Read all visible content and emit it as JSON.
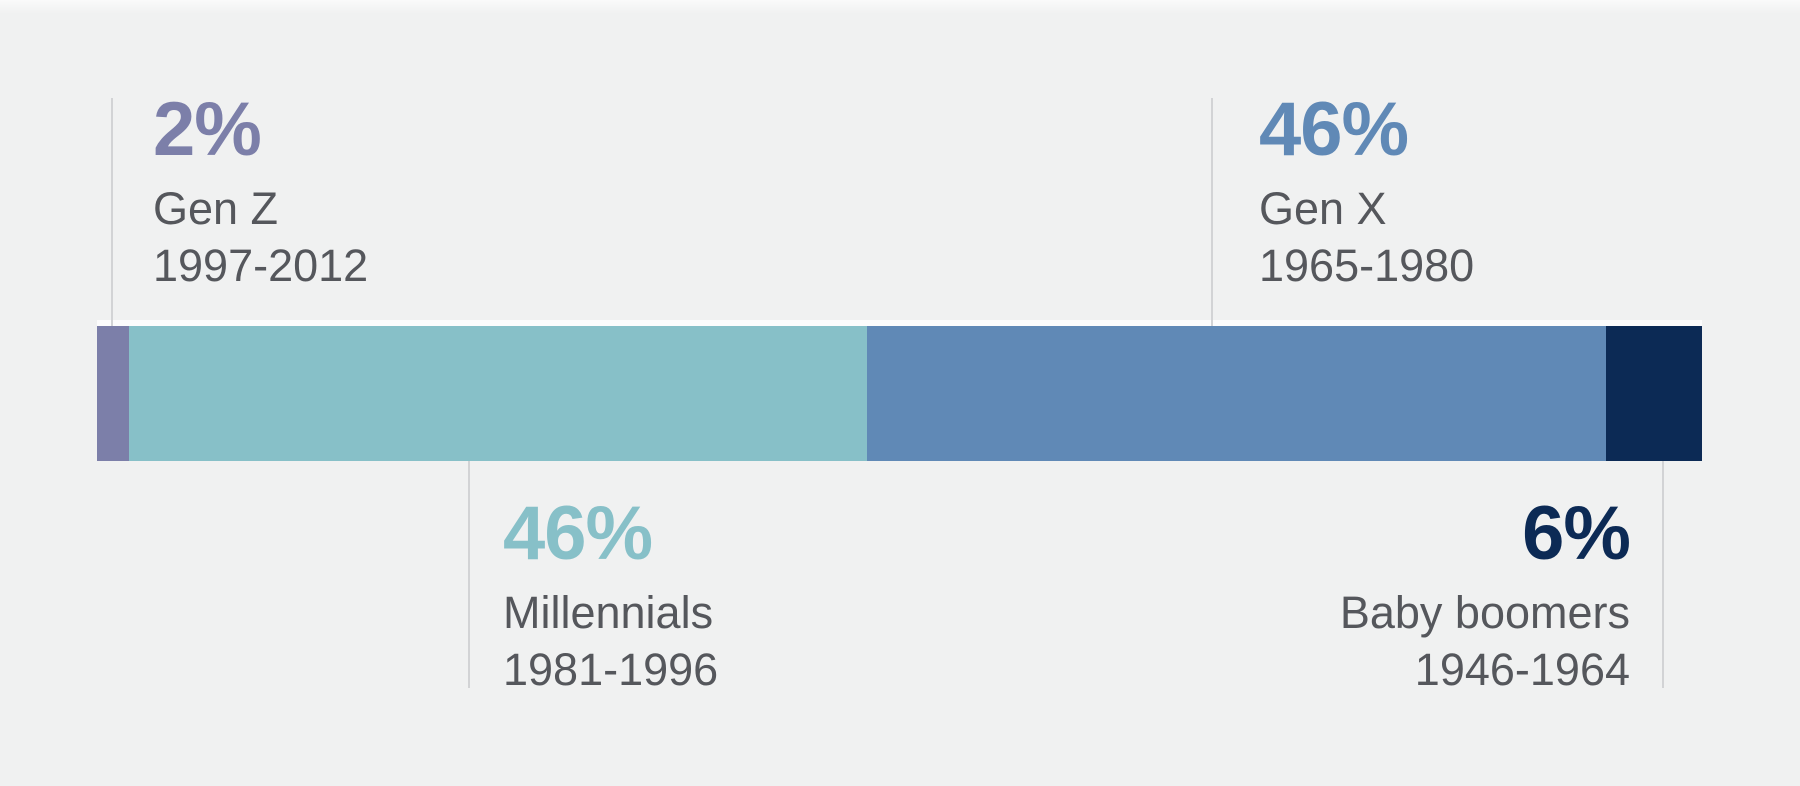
{
  "background_color": "#f0f1f1",
  "text_color": "#55575c",
  "leader_line_color": "#d2d3d5",
  "chart_data": {
    "type": "bar",
    "variant": "horizontal-stacked-single-bar",
    "title": "",
    "unit": "%",
    "total": 100,
    "categories": [
      "Gen Z",
      "Millennials",
      "Gen X",
      "Baby boomers"
    ],
    "values": [
      2,
      46,
      46,
      6
    ],
    "segments": [
      {
        "label": "Gen Z",
        "years": "1997-2012",
        "value": 2,
        "value_label": "2%",
        "color": "#7c7fa9",
        "label_position": "top",
        "align": "left",
        "leader_x_pct": 0.9
      },
      {
        "label": "Millennials",
        "years": "1981-1996",
        "value": 46,
        "value_label": "46%",
        "color": "#87c0c8",
        "label_position": "bottom",
        "align": "left",
        "leader_x_pct": 23.1
      },
      {
        "label": "Gen X",
        "years": "1965-1980",
        "value": 46,
        "value_label": "46%",
        "color": "#6089b6",
        "label_position": "top",
        "align": "left",
        "leader_x_pct": 69.4
      },
      {
        "label": "Baby boomers",
        "years": "1946-1964",
        "value": 6,
        "value_label": "6%",
        "color": "#0c2a55",
        "label_position": "bottom",
        "align": "right",
        "leader_x_pct": 97.5
      }
    ],
    "layout": {
      "legend": "none",
      "grid": "off",
      "axis_labels": "none",
      "labels": "leader-line callouts above and below bar"
    }
  }
}
